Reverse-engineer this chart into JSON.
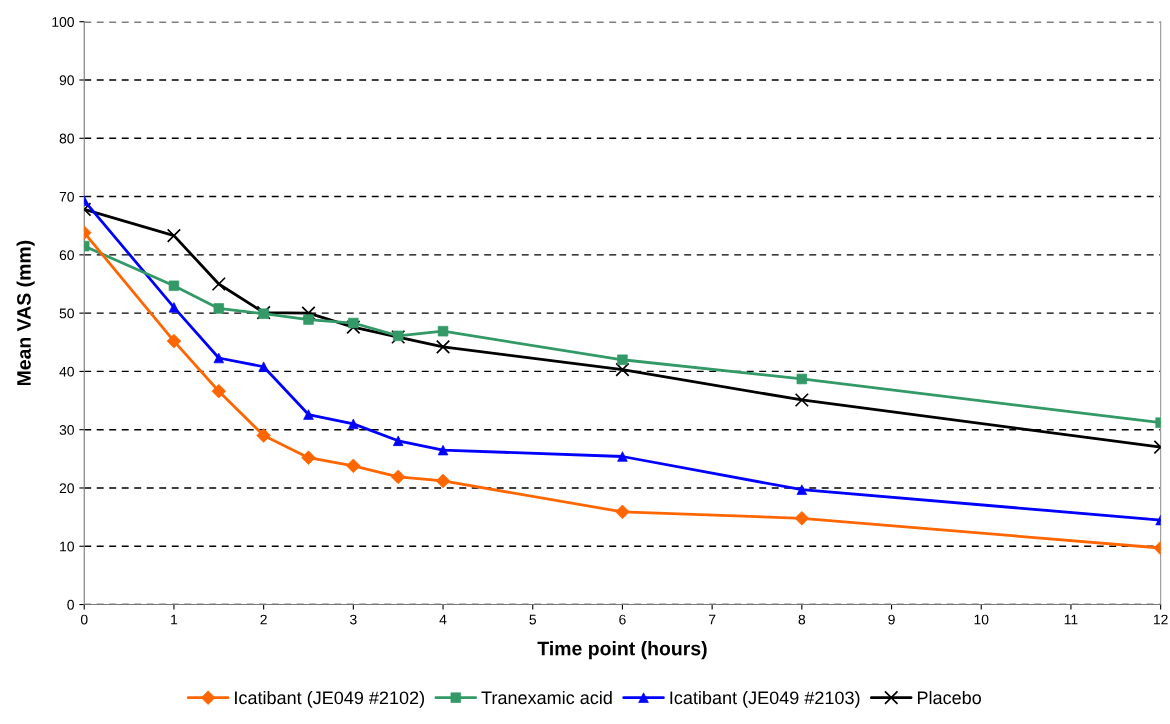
{
  "chart_data": {
    "type": "line",
    "xlabel": "Time point (hours)",
    "ylabel": "Mean VAS (mm)",
    "x": [
      0,
      1,
      1.5,
      2,
      2.5,
      3,
      3.5,
      4,
      6,
      8,
      12
    ],
    "series": [
      {
        "name": "Icatibant (JE049 #2102)",
        "color": "#ff6600",
        "marker": "diamond",
        "values": [
          63.8,
          45.2,
          36.6,
          29.0,
          25.2,
          23.8,
          21.9,
          21.2,
          15.9,
          14.8,
          9.7
        ]
      },
      {
        "name": "Tranexamic acid",
        "color": "#339966",
        "marker": "square",
        "values": [
          61.5,
          54.7,
          50.8,
          49.9,
          48.9,
          48.3,
          46.1,
          46.9,
          42.0,
          38.7,
          31.2
        ]
      },
      {
        "name": "Icatibant (JE049 #2103)",
        "color": "#0000ff",
        "marker": "triangle",
        "values": [
          69.3,
          51.0,
          42.3,
          40.8,
          32.6,
          31.0,
          28.1,
          26.5,
          25.4,
          19.7,
          14.5
        ]
      },
      {
        "name": "Placebo",
        "color": "#000000",
        "marker": "cross",
        "values": [
          67.8,
          63.3,
          55.0,
          50.1,
          50.0,
          47.6,
          45.9,
          44.2,
          40.3,
          35.1,
          27.0
        ]
      }
    ],
    "xlim": [
      0,
      12
    ],
    "xticks": [
      0,
      1,
      2,
      3,
      4,
      5,
      6,
      7,
      8,
      9,
      10,
      11,
      12
    ],
    "ylim": [
      0,
      100
    ],
    "yticks": [
      0,
      10,
      20,
      30,
      40,
      50,
      60,
      70,
      80,
      90,
      100
    ],
    "grid": "y",
    "legend": "bottom",
    "line_style": "solid"
  }
}
